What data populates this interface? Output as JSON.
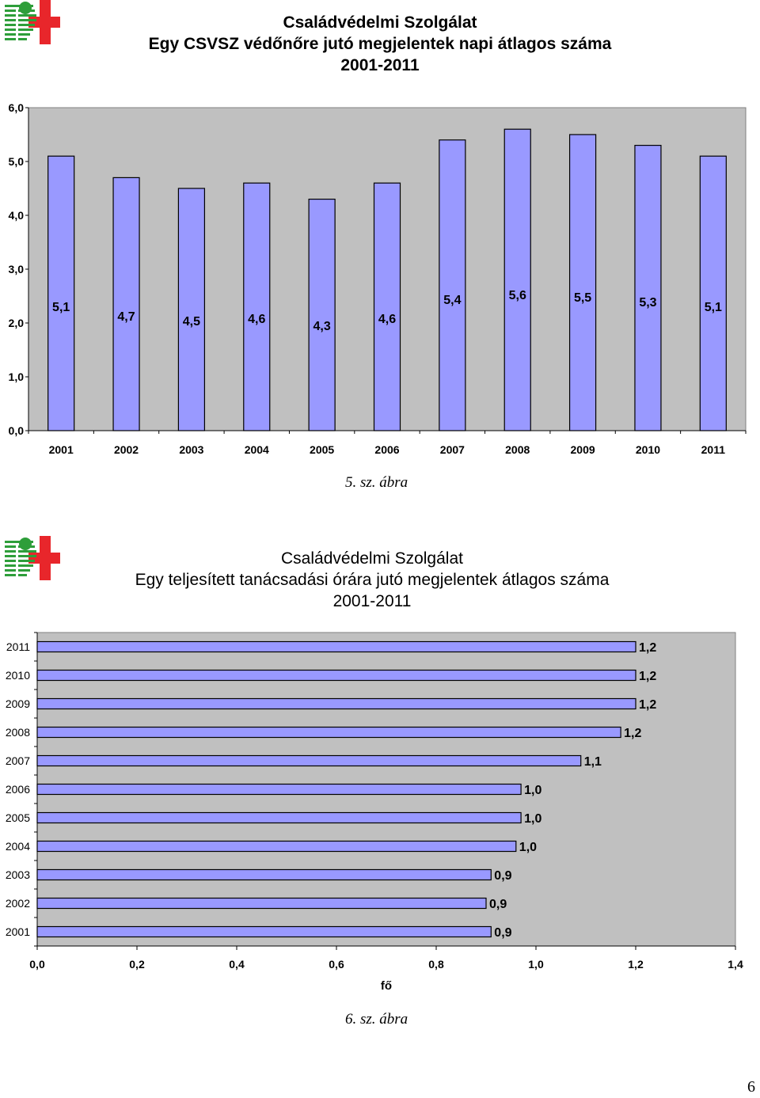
{
  "charts": [
    {
      "title_lines": [
        "Családvédelmi Szolgálat",
        "Egy CSVSZ védőnőre jutó megjelentek napi átlagos száma",
        "2001-2011"
      ],
      "caption": "5.   sz. ábra"
    },
    {
      "title_lines": [
        "Családvédelmi Szolgálat",
        "Egy teljesített tanácsadási órára jutó megjelentek átlagos száma",
        "2001-2011"
      ],
      "caption": "6.   sz. ábra"
    }
  ],
  "page_number": "6",
  "colors": {
    "bar_fill": "#9999ff",
    "plot_bg": "#c0c0c0",
    "logo_green": "#2e9e3a",
    "logo_red": "#e8262b"
  },
  "chart_data": [
    {
      "type": "bar",
      "categories": [
        "2001",
        "2002",
        "2003",
        "2004",
        "2005",
        "2006",
        "2007",
        "2008",
        "2009",
        "2010",
        "2011"
      ],
      "values": [
        5.1,
        4.7,
        4.5,
        4.6,
        4.3,
        4.6,
        5.4,
        5.6,
        5.5,
        5.3,
        5.1
      ],
      "data_labels": [
        "5,1",
        "4,7",
        "4,5",
        "4,6",
        "4,3",
        "4,6",
        "5,4",
        "5,6",
        "5,5",
        "5,3",
        "5,1"
      ],
      "ylim": [
        0,
        6
      ],
      "yticks": [
        "0,0",
        "1,0",
        "2,0",
        "3,0",
        "4,0",
        "5,0",
        "6,0"
      ],
      "grid": false,
      "legend": "none"
    },
    {
      "type": "bar",
      "orientation": "horizontal",
      "categories": [
        "2011",
        "2010",
        "2009",
        "2008",
        "2007",
        "2006",
        "2005",
        "2004",
        "2003",
        "2002",
        "2001"
      ],
      "values": [
        1.2,
        1.2,
        1.2,
        1.17,
        1.09,
        0.97,
        0.97,
        0.96,
        0.91,
        0.9,
        0.91
      ],
      "data_labels": [
        "1,2",
        "1,2",
        "1,2",
        "1,2",
        "1,1",
        "1,0",
        "1,0",
        "1,0",
        "0,9",
        "0,9",
        "0,9"
      ],
      "xlim": [
        0,
        1.4
      ],
      "xticks": [
        "0,0",
        "0,2",
        "0,4",
        "0,6",
        "0,8",
        "1,0",
        "1,2",
        "1,4"
      ],
      "xlabel": "fő",
      "grid": false,
      "legend": "none"
    }
  ]
}
